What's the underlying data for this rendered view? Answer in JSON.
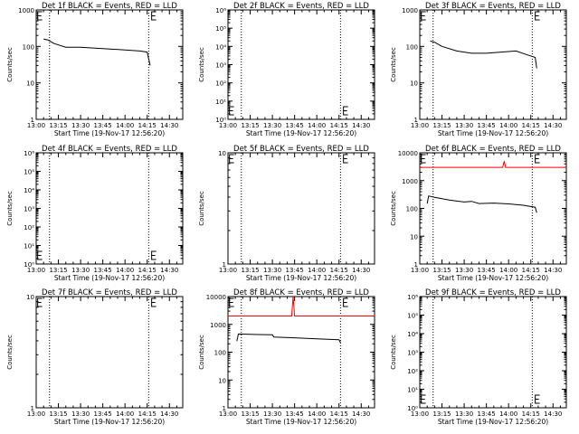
{
  "colors": {
    "events": "#000000",
    "lld": "#ff0000",
    "axis": "#000000",
    "background": "#ffffff"
  },
  "x_tick_labels": [
    "13:00",
    "13:15",
    "13:30",
    "13:45",
    "14:00",
    "14:15",
    "14:30"
  ],
  "xlabel": "Start Time (19-Nov-17 12:56:20)",
  "ylabel": "Counts/sec",
  "chart_data": [
    {
      "type": "line",
      "title": "Det 1f BLACK = Events, RED = LLD",
      "xlabel": "Start Time (19-Nov-17 12:56:20)",
      "ylabel": "Counts/sec",
      "xlim": [
        "13:00",
        "14:39"
      ],
      "yscale": "log",
      "ylim": [
        1,
        1000
      ],
      "y_tick_labels": [
        "1",
        "10",
        "100",
        "1000"
      ],
      "vlines": [
        "13:09",
        "14:16"
      ],
      "markers": [
        "13:01",
        "14:18"
      ],
      "series": [
        {
          "role": "events",
          "x": [
            "13:05",
            "13:08",
            "13:12",
            "13:20",
            "13:30",
            "13:40",
            "13:50",
            "14:00",
            "14:10",
            "14:15",
            "14:17"
          ],
          "y": [
            160,
            150,
            120,
            95,
            95,
            90,
            85,
            80,
            75,
            70,
            30
          ]
        }
      ]
    },
    {
      "type": "line",
      "title": "Det 2f BLACK = Events, RED = LLD",
      "xlabel": "Start Time (19-Nov-17 12:56:20)",
      "ylabel": "Counts/sec",
      "xlim": [
        "13:00",
        "14:39"
      ],
      "yscale": "log",
      "ylim": [
        1,
        1000000
      ],
      "y_tick_labels": [
        "10⁰",
        "10¹",
        "10²",
        "10³",
        "10⁴",
        "10⁵",
        "10⁶"
      ],
      "vlines": [
        "13:09",
        "14:16"
      ],
      "markers": [
        "13:01",
        "14:18"
      ],
      "series": []
    },
    {
      "type": "line",
      "title": "Det 3f BLACK = Events, RED = LLD",
      "xlabel": "Start Time (19-Nov-17 12:56:20)",
      "ylabel": "Counts/sec",
      "xlim": [
        "13:00",
        "14:39"
      ],
      "yscale": "log",
      "ylim": [
        1,
        1000
      ],
      "y_tick_labels": [
        "1",
        "10",
        "100",
        "1000"
      ],
      "vlines": [
        "13:09",
        "14:16"
      ],
      "markers": [
        "13:01",
        "14:18"
      ],
      "series": [
        {
          "role": "events",
          "x": [
            "13:07",
            "13:10",
            "13:15",
            "13:25",
            "13:35",
            "13:45",
            "13:55",
            "14:05",
            "14:12",
            "14:18",
            "14:19"
          ],
          "y": [
            140,
            130,
            100,
            75,
            65,
            65,
            70,
            75,
            60,
            50,
            25
          ]
        }
      ]
    },
    {
      "type": "line",
      "title": "Det 4f BLACK = Events, RED = LLD",
      "xlabel": "Start Time (19-Nov-17 12:56:20)",
      "ylabel": "Counts/sec",
      "xlim": [
        "13:00",
        "14:39"
      ],
      "yscale": "log",
      "ylim": [
        1,
        1000000
      ],
      "y_tick_labels": [
        "10⁰",
        "10¹",
        "10²",
        "10³",
        "10⁴",
        "10⁵",
        "10⁶"
      ],
      "vlines": [
        "13:09",
        "14:16"
      ],
      "markers": [
        "13:01",
        "14:18"
      ],
      "series": []
    },
    {
      "type": "line",
      "title": "Det 5f BLACK = Events, RED = LLD",
      "xlabel": "Start Time (19-Nov-17 12:56:20)",
      "ylabel": "Counts/sec",
      "xlim": [
        "13:00",
        "14:39"
      ],
      "yscale": "log",
      "ylim": [
        1,
        10
      ],
      "y_tick_labels": [
        "1",
        "10"
      ],
      "vlines": [
        "13:09",
        "14:16"
      ],
      "markers": [
        "13:01",
        "14:18"
      ],
      "series": []
    },
    {
      "type": "line",
      "title": "Det 6f BLACK = Events, RED = LLD",
      "xlabel": "Start Time (19-Nov-17 12:56:20)",
      "ylabel": "Counts/sec",
      "xlim": [
        "13:00",
        "14:39"
      ],
      "yscale": "log",
      "ylim": [
        1,
        10000
      ],
      "y_tick_labels": [
        "1",
        "10",
        "100",
        "1000",
        "10000"
      ],
      "vlines": [
        "13:09",
        "14:16"
      ],
      "markers": [
        "13:01",
        "14:18"
      ],
      "series": [
        {
          "role": "lld",
          "x": [
            "13:00",
            "13:56",
            "13:57",
            "13:58",
            "14:39"
          ],
          "y": [
            3000,
            3000,
            5000,
            3000,
            3000
          ]
        },
        {
          "role": "events",
          "x": [
            "13:05",
            "13:06",
            "13:10",
            "13:20",
            "13:30",
            "13:35",
            "13:40",
            "13:50",
            "14:00",
            "14:10",
            "14:18",
            "14:19"
          ],
          "y": [
            150,
            280,
            250,
            200,
            170,
            180,
            150,
            155,
            145,
            130,
            110,
            70
          ]
        }
      ]
    },
    {
      "type": "line",
      "title": "Det 7f BLACK = Events, RED = LLD",
      "xlabel": "Start Time (19-Nov-17 12:56:20)",
      "ylabel": "Counts/sec",
      "xlim": [
        "13:00",
        "14:39"
      ],
      "yscale": "log",
      "ylim": [
        1,
        10
      ],
      "y_tick_labels": [
        "1",
        "10"
      ],
      "vlines": [
        "13:09",
        "14:16"
      ],
      "markers": [
        "13:01",
        "14:18"
      ],
      "series": []
    },
    {
      "type": "line",
      "title": "Det 8f BLACK = Events, RED = LLD",
      "xlabel": "Start Time (19-Nov-17 12:56:20)",
      "ylabel": "Counts/sec",
      "xlim": [
        "13:00",
        "14:39"
      ],
      "yscale": "log",
      "ylim": [
        1,
        10000
      ],
      "y_tick_labels": [
        "1",
        "10",
        "100",
        "1000",
        "10000"
      ],
      "vlines": [
        "13:09",
        "14:16"
      ],
      "markers": [
        "13:01",
        "14:18"
      ],
      "series": [
        {
          "role": "lld",
          "x": [
            "13:00",
            "13:43",
            "13:44",
            "13:45",
            "14:39"
          ],
          "y": [
            2000,
            2000,
            10000,
            2000,
            2000
          ]
        },
        {
          "role": "events",
          "x": [
            "13:06",
            "13:07",
            "13:20",
            "13:30",
            "13:31",
            "13:45",
            "14:00",
            "14:15",
            "14:16"
          ],
          "y": [
            250,
            450,
            430,
            420,
            350,
            330,
            300,
            280,
            220
          ]
        }
      ]
    },
    {
      "type": "line",
      "title": "Det 9f BLACK = Events, RED = LLD",
      "xlabel": "Start Time (19-Nov-17 12:56:20)",
      "ylabel": "Counts/sec",
      "xlim": [
        "13:00",
        "14:39"
      ],
      "yscale": "log",
      "ylim": [
        1,
        1000000
      ],
      "y_tick_labels": [
        "10⁰",
        "10¹",
        "10²",
        "10³",
        "10⁴",
        "10⁵",
        "10⁶"
      ],
      "vlines": [
        "13:09",
        "14:16"
      ],
      "markers": [
        "13:01",
        "14:18"
      ],
      "series": []
    }
  ]
}
